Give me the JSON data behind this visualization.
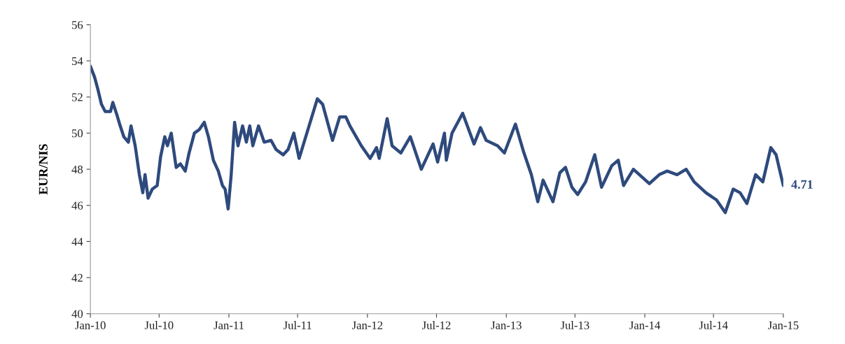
{
  "chart_data": {
    "type": "line",
    "ylabel": "EUR/NIS",
    "x": [
      "2010-01-01",
      "2010-01-12",
      "2010-01-21",
      "2010-01-30",
      "2010-02-09",
      "2010-02-23",
      "2010-03-01",
      "2010-03-12",
      "2010-03-19",
      "2010-03-30",
      "2010-04-11",
      "2010-04-18",
      "2010-04-29",
      "2010-05-10",
      "2010-05-19",
      "2010-05-25",
      "2010-06-02",
      "2010-06-13",
      "2010-06-26",
      "2010-07-05",
      "2010-07-16",
      "2010-07-23",
      "2010-08-02",
      "2010-08-15",
      "2010-08-26",
      "2010-09-08",
      "2010-09-18",
      "2010-10-02",
      "2010-10-15",
      "2010-10-28",
      "2010-11-08",
      "2010-11-21",
      "2010-12-04",
      "2010-12-15",
      "2010-12-22",
      "2010-12-30",
      "2011-01-07",
      "2011-01-16",
      "2011-01-25",
      "2011-02-06",
      "2011-02-16",
      "2011-02-25",
      "2011-03-05",
      "2011-03-20",
      "2011-04-04",
      "2011-04-22",
      "2011-05-05",
      "2011-05-24",
      "2011-06-06",
      "2011-06-21",
      "2011-07-05",
      "2011-08-22",
      "2011-09-05",
      "2011-10-01",
      "2011-10-20",
      "2011-11-05",
      "2011-11-16",
      "2011-12-16",
      "2012-01-08",
      "2012-01-25",
      "2012-02-01",
      "2012-02-22",
      "2012-03-06",
      "2012-03-29",
      "2012-04-23",
      "2012-05-22",
      "2012-06-22",
      "2012-07-04",
      "2012-07-22",
      "2012-07-27",
      "2012-08-11",
      "2012-09-08",
      "2012-10-08",
      "2012-10-25",
      "2012-11-09",
      "2012-12-09",
      "2012-12-27",
      "2013-01-25",
      "2013-02-15",
      "2013-03-08",
      "2013-03-25",
      "2013-04-08",
      "2013-05-04",
      "2013-05-22",
      "2013-06-06",
      "2013-06-23",
      "2013-07-08",
      "2013-07-29",
      "2013-08-22",
      "2013-09-09",
      "2013-10-06",
      "2013-10-23",
      "2013-11-06",
      "2013-12-02",
      "2014-01-13",
      "2014-02-08",
      "2014-03-01",
      "2014-03-27",
      "2014-04-20",
      "2014-05-11",
      "2014-06-11",
      "2014-07-09",
      "2014-08-01",
      "2014-08-22",
      "2014-09-09",
      "2014-09-27",
      "2014-10-20",
      "2014-11-08",
      "2014-11-29",
      "2014-12-13",
      "2015-01-01"
    ],
    "series": [
      {
        "color": "#2e4a7d",
        "values": [
          53.7,
          53.1,
          52.4,
          51.6,
          51.2,
          51.2,
          51.7,
          51.0,
          50.5,
          49.8,
          49.5,
          50.4,
          49.3,
          47.7,
          46.7,
          47.7,
          46.4,
          46.9,
          47.1,
          48.7,
          49.8,
          49.3,
          50.0,
          48.1,
          48.3,
          47.9,
          48.9,
          50.0,
          50.2,
          50.6,
          49.8,
          48.5,
          47.9,
          47.1,
          46.9,
          45.8,
          47.7,
          50.6,
          49.3,
          50.4,
          49.5,
          50.4,
          49.3,
          50.4,
          49.5,
          49.6,
          49.1,
          48.8,
          49.1,
          50.0,
          48.6,
          51.9,
          51.6,
          49.6,
          50.9,
          50.9,
          50.4,
          49.3,
          48.6,
          49.2,
          48.6,
          50.8,
          49.3,
          48.9,
          49.8,
          48.0,
          49.4,
          48.4,
          50.0,
          48.5,
          50.0,
          51.1,
          49.4,
          50.3,
          49.6,
          49.3,
          48.9,
          50.5,
          49.0,
          47.7,
          46.2,
          47.4,
          46.2,
          47.8,
          48.1,
          47.0,
          46.6,
          47.3,
          48.8,
          47.0,
          48.2,
          48.5,
          47.1,
          48.0,
          47.2,
          47.7,
          47.9,
          47.7,
          48.0,
          47.3,
          46.7,
          46.3,
          45.6,
          46.9,
          46.7,
          46.1,
          47.7,
          47.3,
          49.2,
          48.8,
          47.1
        ]
      }
    ],
    "xlim": [
      "2010-01-01",
      "2015-01-01"
    ],
    "xticks": [
      {
        "value": "2010-01-01",
        "label": "Jan-10"
      },
      {
        "value": "2010-07-01",
        "label": "Jul-10"
      },
      {
        "value": "2011-01-01",
        "label": "Jan-11"
      },
      {
        "value": "2011-07-01",
        "label": "Jul-11"
      },
      {
        "value": "2012-01-01",
        "label": "Jan-12"
      },
      {
        "value": "2012-07-01",
        "label": "Jul-12"
      },
      {
        "value": "2013-01-01",
        "label": "Jan-13"
      },
      {
        "value": "2013-07-01",
        "label": "Jul-13"
      },
      {
        "value": "2014-01-01",
        "label": "Jan-14"
      },
      {
        "value": "2014-07-01",
        "label": "Jul-14"
      },
      {
        "value": "2015-01-01",
        "label": "Jan-15"
      }
    ],
    "ylim": [
      40,
      56
    ],
    "yticks": [
      40,
      42,
      44,
      46,
      48,
      50,
      52,
      54,
      56
    ],
    "annotations": [
      {
        "text": "4.71",
        "x": "2015-01-01",
        "y": 47.1
      }
    ],
    "grid": false,
    "legend": false
  }
}
